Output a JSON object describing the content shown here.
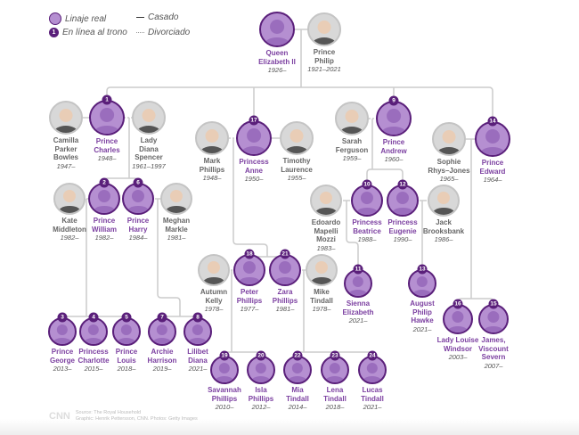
{
  "legend": {
    "royal": "Linaje real",
    "rank_sample": "1",
    "in_line": "En línea al trono",
    "married": "Casado",
    "divorced": "Divorciado"
  },
  "colors": {
    "royal_fill": "#b58fd1",
    "royal_border": "#5a1f7a",
    "royal_text": "#7b3fa0",
    "line": "#cccccc"
  },
  "people": [
    {
      "name": [
        "Queen",
        "Elizabeth II"
      ],
      "years": "1926–",
      "royal": true,
      "rank": ""
    },
    {
      "name": [
        "Prince",
        "Philip"
      ],
      "years": "1921–2021",
      "royal": false,
      "rank": ""
    },
    {
      "name": [
        "Camilla",
        "Parker",
        "Bowles"
      ],
      "years": "1947–",
      "royal": false,
      "rank": ""
    },
    {
      "name": [
        "Prince",
        "Charles"
      ],
      "years": "1948–",
      "royal": true,
      "rank": "1"
    },
    {
      "name": [
        "Lady",
        "Diana",
        "Spencer"
      ],
      "years": "1961–1997",
      "royal": false,
      "rank": ""
    },
    {
      "name": [
        "Mark",
        "Phillips"
      ],
      "years": "1948–",
      "royal": false,
      "rank": ""
    },
    {
      "name": [
        "Princess",
        "Anne"
      ],
      "years": "1950–",
      "royal": true,
      "rank": "17"
    },
    {
      "name": [
        "Timothy",
        "Laurence"
      ],
      "years": "1955–",
      "royal": false,
      "rank": ""
    },
    {
      "name": [
        "Sarah",
        "Ferguson"
      ],
      "years": "1959–",
      "royal": false,
      "rank": ""
    },
    {
      "name": [
        "Prince",
        "Andrew"
      ],
      "years": "1960–",
      "royal": true,
      "rank": "9"
    },
    {
      "name": [
        "Sophie",
        "Rhys–Jones"
      ],
      "years": "1965–",
      "royal": false,
      "rank": ""
    },
    {
      "name": [
        "Prince",
        "Edward"
      ],
      "years": "1964–",
      "royal": true,
      "rank": "14"
    },
    {
      "name": [
        "Kate",
        "Middleton"
      ],
      "years": "1982–",
      "royal": false,
      "rank": ""
    },
    {
      "name": [
        "Prince",
        "William"
      ],
      "years": "1982–",
      "royal": true,
      "rank": "2"
    },
    {
      "name": [
        "Prince",
        "Harry"
      ],
      "years": "1984–",
      "royal": true,
      "rank": "6"
    },
    {
      "name": [
        "Meghan",
        "Markle"
      ],
      "years": "1981–",
      "royal": false,
      "rank": ""
    },
    {
      "name": [
        "Edoardo",
        "Mapelli",
        "Mozzi"
      ],
      "years": "1983–",
      "royal": false,
      "rank": ""
    },
    {
      "name": [
        "Princess",
        "Beatrice"
      ],
      "years": "1988–",
      "royal": true,
      "rank": "10"
    },
    {
      "name": [
        "Princess",
        "Eugenie"
      ],
      "years": "1990–",
      "royal": true,
      "rank": "12"
    },
    {
      "name": [
        "Jack",
        "Brooksbank"
      ],
      "years": "1986–",
      "royal": false,
      "rank": ""
    },
    {
      "name": [
        "Autumn",
        "Kelly"
      ],
      "years": "1978–",
      "royal": false,
      "rank": ""
    },
    {
      "name": [
        "Peter",
        "Phillips"
      ],
      "years": "1977–",
      "royal": true,
      "rank": "18"
    },
    {
      "name": [
        "Zara",
        "Phillips"
      ],
      "years": "1981–",
      "royal": true,
      "rank": "21"
    },
    {
      "name": [
        "Mike",
        "Tindall"
      ],
      "years": "1978–",
      "royal": false,
      "rank": ""
    },
    {
      "name": [
        "Sienna",
        "Elizabeth"
      ],
      "years": "2021–",
      "royal": true,
      "rank": "11"
    },
    {
      "name": [
        "August",
        "Philip",
        "Hawke"
      ],
      "years": "2021–",
      "royal": true,
      "rank": "13"
    },
    {
      "name": [
        "Lady Louise",
        "Windsor"
      ],
      "years": "2003–",
      "royal": true,
      "rank": "16"
    },
    {
      "name": [
        "James,",
        "Viscount",
        "Severn"
      ],
      "years": "2007–",
      "royal": true,
      "rank": "15"
    },
    {
      "name": [
        "Prince",
        "George"
      ],
      "years": "2013–",
      "royal": true,
      "rank": "3"
    },
    {
      "name": [
        "Princess",
        "Charlotte"
      ],
      "years": "2015–",
      "royal": true,
      "rank": "4"
    },
    {
      "name": [
        "Prince",
        "Louis"
      ],
      "years": "2018–",
      "royal": true,
      "rank": "5"
    },
    {
      "name": [
        "Archie",
        "Harrison"
      ],
      "years": "2019–",
      "royal": true,
      "rank": "7"
    },
    {
      "name": [
        "Lilibet",
        "Diana"
      ],
      "years": "2021–",
      "royal": true,
      "rank": "8"
    },
    {
      "name": [
        "Savannah",
        "Phillips"
      ],
      "years": "2010–",
      "royal": true,
      "rank": "19"
    },
    {
      "name": [
        "Isla",
        "Phillips"
      ],
      "years": "2012–",
      "royal": true,
      "rank": "20"
    },
    {
      "name": [
        "Mia",
        "Tindall"
      ],
      "years": "2014–",
      "royal": true,
      "rank": "22"
    },
    {
      "name": [
        "Lena",
        "Tindall"
      ],
      "years": "2018–",
      "royal": true,
      "rank": "23"
    },
    {
      "name": [
        "Lucas",
        "Tindall"
      ],
      "years": "2021–",
      "royal": true,
      "rank": "24"
    }
  ],
  "footer": {
    "logo": "CNN",
    "source": "Source: The Royal Household",
    "credit": "Graphic: Henrik Pettersson, CNN. Photos: Getty Images"
  }
}
